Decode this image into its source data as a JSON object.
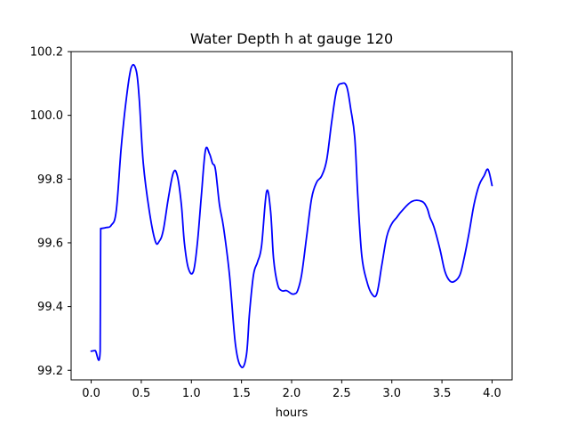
{
  "chart_data": {
    "type": "line",
    "title": "Water Depth h at gauge 120",
    "xlabel": "hours",
    "ylabel": "",
    "xlim": [
      -0.2,
      4.2
    ],
    "ylim": [
      99.17,
      100.2
    ],
    "xticks": [
      0.0,
      0.5,
      1.0,
      1.5,
      2.0,
      2.5,
      3.0,
      3.5,
      4.0
    ],
    "xtick_labels": [
      "0.0",
      "0.5",
      "1.0",
      "1.5",
      "2.0",
      "2.5",
      "3.0",
      "3.5",
      "4.0"
    ],
    "yticks": [
      99.2,
      99.4,
      99.6,
      99.8,
      100.0,
      100.2
    ],
    "ytick_labels": [
      "99.2",
      "99.4",
      "99.6",
      "99.8",
      "100.0",
      "100.2"
    ],
    "grid": false,
    "series": [
      {
        "color": "#0000ff",
        "x": [
          0.0,
          0.04,
          0.09,
          0.095,
          0.1,
          0.15,
          0.2,
          0.25,
          0.3,
          0.35,
          0.4,
          0.45,
          0.48,
          0.52,
          0.58,
          0.64,
          0.68,
          0.72,
          0.77,
          0.82,
          0.86,
          0.9,
          0.93,
          0.97,
          1.02,
          1.06,
          1.1,
          1.14,
          1.18,
          1.21,
          1.24,
          1.28,
          1.32,
          1.38,
          1.44,
          1.5,
          1.55,
          1.58,
          1.62,
          1.66,
          1.7,
          1.75,
          1.79,
          1.82,
          1.86,
          1.9,
          1.95,
          2.0,
          2.03,
          2.06,
          2.1,
          2.15,
          2.2,
          2.25,
          2.3,
          2.35,
          2.4,
          2.45,
          2.5,
          2.55,
          2.59,
          2.63,
          2.66,
          2.7,
          2.75,
          2.8,
          2.85,
          2.9,
          2.95,
          3.0,
          3.05,
          3.1,
          3.2,
          3.3,
          3.35,
          3.38,
          3.42,
          3.48,
          3.53,
          3.58,
          3.63,
          3.68,
          3.72,
          3.77,
          3.82,
          3.87,
          3.92,
          3.96,
          4.0
        ],
        "y": [
          99.26,
          99.262,
          99.262,
          99.645,
          99.645,
          99.648,
          99.655,
          99.7,
          99.9,
          100.05,
          100.15,
          100.14,
          100.05,
          99.85,
          99.7,
          99.605,
          99.605,
          99.64,
          99.74,
          99.82,
          99.81,
          99.72,
          99.6,
          99.52,
          99.51,
          99.6,
          99.75,
          99.89,
          99.88,
          99.85,
          99.83,
          99.72,
          99.65,
          99.5,
          99.28,
          99.21,
          99.25,
          99.38,
          99.5,
          99.54,
          99.59,
          99.76,
          99.7,
          99.55,
          99.47,
          99.45,
          99.45,
          99.44,
          99.44,
          99.45,
          99.5,
          99.62,
          99.74,
          99.79,
          99.81,
          99.86,
          99.98,
          100.08,
          100.1,
          100.09,
          100.02,
          99.93,
          99.75,
          99.56,
          99.48,
          99.44,
          99.44,
          99.53,
          99.62,
          99.66,
          99.68,
          99.7,
          99.73,
          99.73,
          99.71,
          99.68,
          99.65,
          99.58,
          99.51,
          99.48,
          99.48,
          99.5,
          99.55,
          99.63,
          99.72,
          99.78,
          99.81,
          99.83,
          99.78
        ]
      }
    ]
  }
}
